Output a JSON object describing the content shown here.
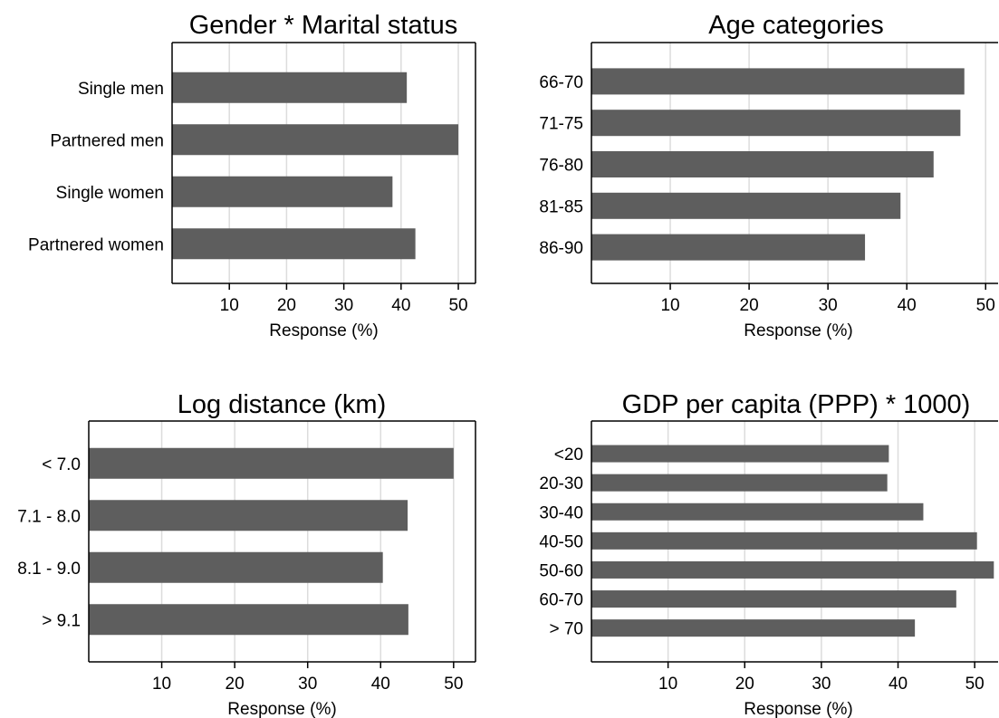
{
  "chart_data": [
    {
      "type": "bar",
      "orientation": "horizontal",
      "title": "Gender * Marital status",
      "categories": [
        "Single men",
        "Partnered men",
        "Single women",
        "Partnered women"
      ],
      "values": [
        41,
        50,
        38.5,
        42.5
      ],
      "xlabel": "Response (%)",
      "ylabel": "",
      "xticks": [
        10,
        20,
        30,
        40,
        50
      ],
      "xlim": [
        0,
        53
      ],
      "grid": true,
      "bar_color": "#5e5e5e"
    },
    {
      "type": "bar",
      "orientation": "horizontal",
      "title": "Age categories",
      "categories": [
        "66-70",
        "71-75",
        "76-80",
        "81-85",
        "86-90"
      ],
      "values": [
        47.3,
        46.8,
        43.4,
        39.2,
        34.7
      ],
      "xlabel": "Response (%)",
      "ylabel": "",
      "xticks": [
        10,
        20,
        30,
        40,
        50
      ],
      "xlim": [
        0,
        52.5
      ],
      "grid": true,
      "bar_color": "#5e5e5e"
    },
    {
      "type": "bar",
      "orientation": "horizontal",
      "title": "Log distance (km)",
      "categories": [
        "< 7.0",
        "7.1 - 8.0",
        "8.1 - 9.0",
        "> 9.1"
      ],
      "values": [
        50,
        43.7,
        40.3,
        43.8
      ],
      "xlabel": "Response (%)",
      "ylabel": "",
      "xticks": [
        10,
        20,
        30,
        40,
        50
      ],
      "xlim": [
        0,
        53
      ],
      "grid": true,
      "bar_color": "#5e5e5e"
    },
    {
      "type": "bar",
      "orientation": "horizontal",
      "title": "GDP per capita (PPP) * 1000)",
      "categories": [
        "<20",
        "20-30",
        "30-40",
        "40-50",
        "50-60",
        "60-70",
        "> 70"
      ],
      "values": [
        38.8,
        38.6,
        43.3,
        50.3,
        52.5,
        47.6,
        42.2
      ],
      "xlabel": "Response (%)",
      "ylabel": "",
      "xticks": [
        10,
        20,
        30,
        40,
        50
      ],
      "xlim": [
        0,
        54
      ],
      "grid": true,
      "bar_color": "#5e5e5e"
    }
  ]
}
